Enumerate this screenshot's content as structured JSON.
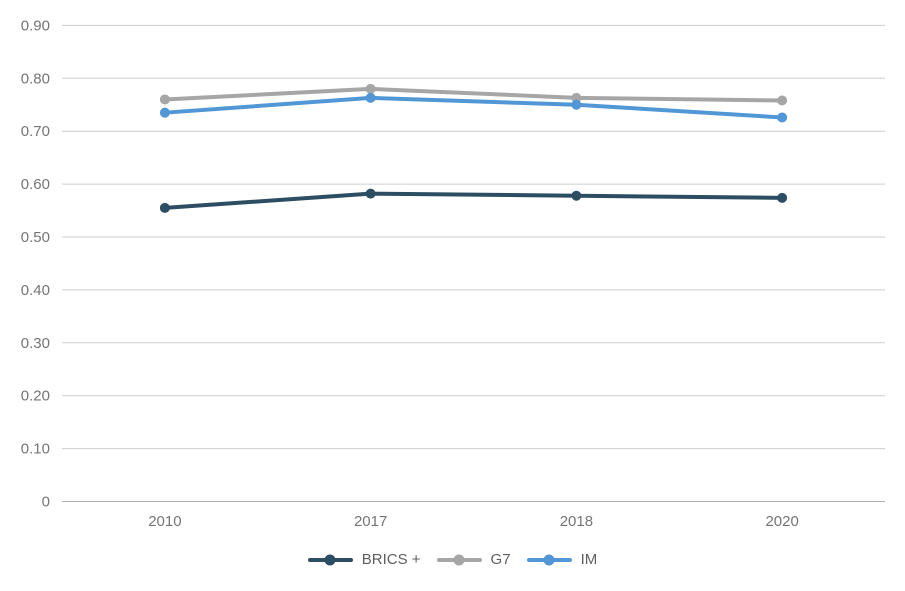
{
  "page": {
    "background": "#ffffff"
  },
  "style": {
    "grid_color": "#cdcdcd",
    "zero_line_color": "#b2b2b2",
    "tick_label_color": "#757575",
    "legend_label_color": "#5f5f5f"
  },
  "chart_data": {
    "type": "line",
    "title": "",
    "xlabel": "",
    "ylabel": "",
    "grid": true,
    "legend_position": "bottom",
    "ylim": [
      0,
      0.9
    ],
    "categories": [
      "2010",
      "2017",
      "2018",
      "2020"
    ],
    "series": [
      {
        "name": "BRICS +",
        "color": "#2d4d62",
        "values": [
          0.555,
          0.582,
          0.578,
          0.574
        ]
      },
      {
        "name": "G7",
        "color": "#a6a6a6",
        "values": [
          0.76,
          0.78,
          0.763,
          0.758
        ]
      },
      {
        "name": "IM",
        "color": "#5297d5",
        "values": [
          0.735,
          0.763,
          0.75,
          0.726
        ]
      }
    ],
    "yticks": [
      {
        "value": 0.9,
        "label": "0.90"
      },
      {
        "value": 0.8,
        "label": "0.80"
      },
      {
        "value": 0.7,
        "label": "0.70"
      },
      {
        "value": 0.6,
        "label": "0.60"
      },
      {
        "value": 0.5,
        "label": "0.50"
      },
      {
        "value": 0.4,
        "label": "0.40"
      },
      {
        "value": 0.3,
        "label": "0.30"
      },
      {
        "value": 0.2,
        "label": "0.20"
      },
      {
        "value": 0.1,
        "label": "0.10"
      },
      {
        "value": 0,
        "label": "0"
      }
    ]
  }
}
